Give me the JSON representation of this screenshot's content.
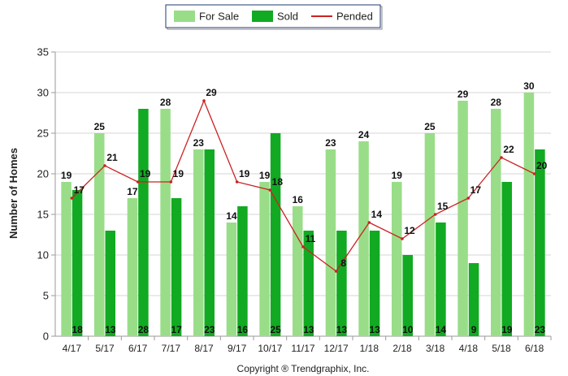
{
  "chart_data": {
    "type": "bar",
    "ylabel": "Number of Homes",
    "ylim": [
      0,
      35
    ],
    "yticks": [
      0,
      5,
      10,
      15,
      20,
      25,
      30,
      35
    ],
    "grid": true,
    "legend_position": "top-center",
    "categories": [
      "4/17",
      "5/17",
      "6/17",
      "7/17",
      "8/17",
      "9/17",
      "10/17",
      "11/17",
      "12/17",
      "1/18",
      "2/18",
      "3/18",
      "4/18",
      "5/18",
      "6/18"
    ],
    "series": [
      {
        "name": "For Sale",
        "kind": "bar",
        "color": "#99dd88",
        "values": [
          19,
          25,
          17,
          28,
          23,
          14,
          19,
          16,
          23,
          24,
          19,
          25,
          29,
          28,
          30
        ]
      },
      {
        "name": "Sold",
        "kind": "bar",
        "color": "#11aa22",
        "values": [
          18,
          13,
          28,
          17,
          23,
          16,
          25,
          13,
          13,
          13,
          10,
          14,
          9,
          19,
          23
        ]
      },
      {
        "name": "Pended",
        "kind": "line",
        "color": "#cc2222",
        "values": [
          17,
          21,
          19,
          19,
          29,
          19,
          18,
          11,
          8,
          14,
          12,
          15,
          17,
          22,
          20
        ]
      }
    ]
  },
  "footer": {
    "copyright": "Copyright ® Trendgraphix, Inc."
  }
}
